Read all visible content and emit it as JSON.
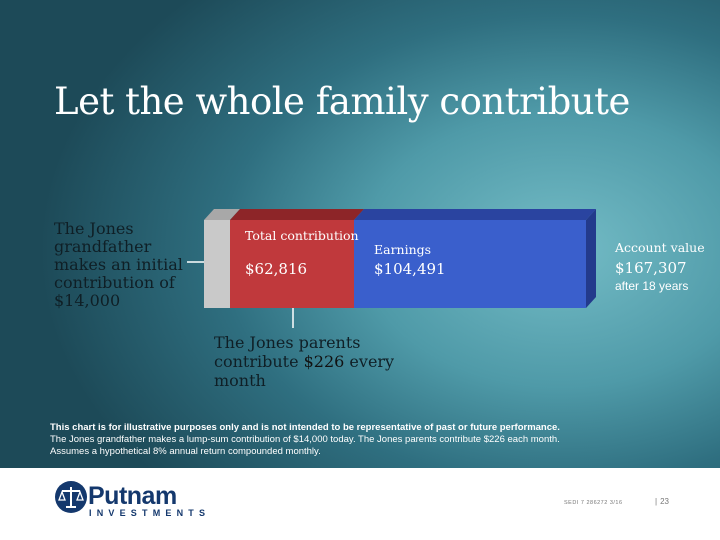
{
  "slide": {
    "title": "Let the whole family contribute",
    "grandfather_text": "The Jones grandfather makes an initial contribution of $14,000",
    "parents_text_prefix": "The Jones parents contribute ",
    "parents_amount": "$226",
    "parents_text_suffix": " every month"
  },
  "bar": {
    "segments": [
      {
        "label": "",
        "value": "$14,000",
        "color": "#c9c9c9"
      },
      {
        "label": "Total contribution",
        "value": "$62,816",
        "color": "#c0393c"
      },
      {
        "label": "Earnings",
        "value": "$104,491",
        "color": "#3a5fcc"
      }
    ],
    "account_label": "Account value",
    "account_value": "$167,307",
    "account_note": "after 18 years"
  },
  "disclaimer": {
    "bold": "This chart is for illustrative purposes only and is not intended to be representative of past or future performance.",
    "line2": "The Jones grandfather makes a lump-sum contribution of $14,000 today. The Jones parents contribute $226 each month.",
    "line3": "Assumes a hypothetical 8% annual return compounded monthly."
  },
  "footer": {
    "brand": "Putnam",
    "brand_sub": "INVESTMENTS",
    "code": "SEDI 7 286272 3/16",
    "page": "23"
  },
  "colors": {
    "red": "#c0393c",
    "blue": "#3a5fcc",
    "grey": "#c9c9c9",
    "brand": "#14386d"
  },
  "icons": {
    "logo": "scales-of-justice-icon"
  }
}
